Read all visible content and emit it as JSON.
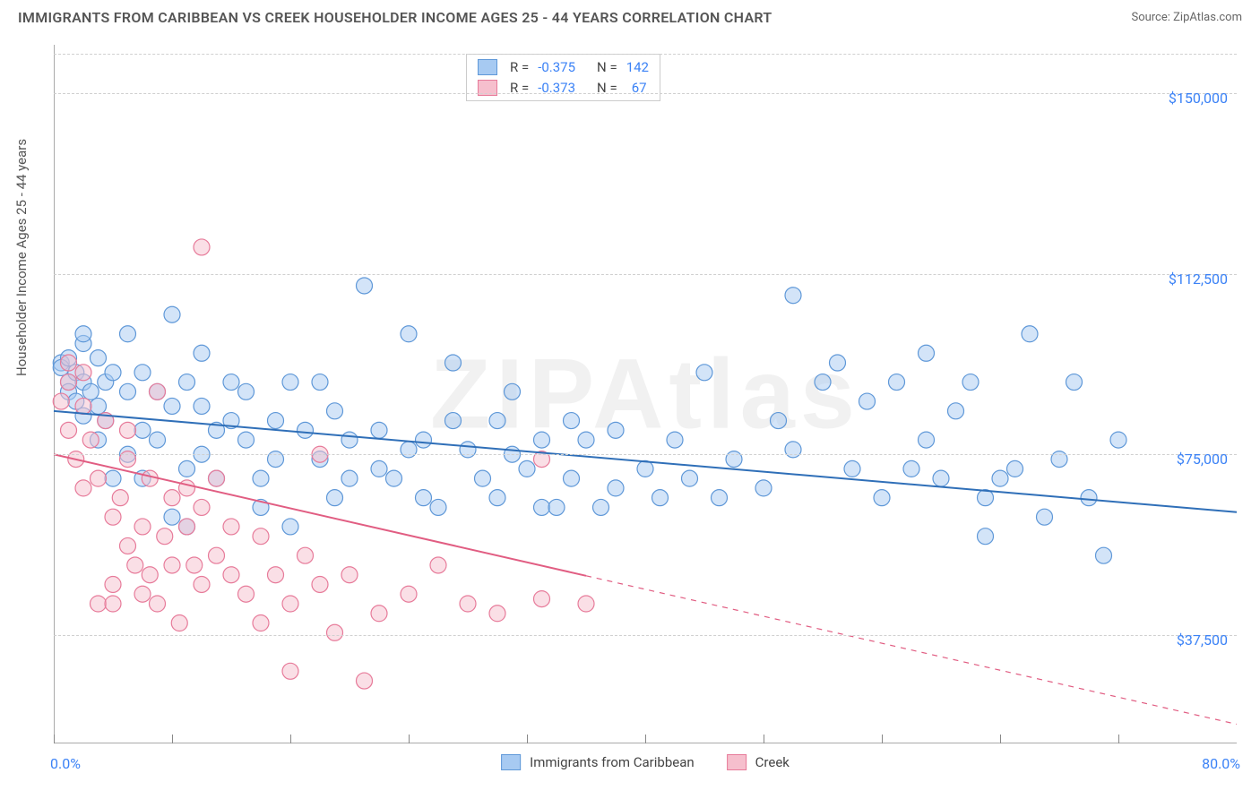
{
  "title": "IMMIGRANTS FROM CARIBBEAN VS CREEK HOUSEHOLDER INCOME AGES 25 - 44 YEARS CORRELATION CHART",
  "source": "Source: ZipAtlas.com",
  "watermark": "ZIPAtlas",
  "chart": {
    "type": "scatter",
    "y_axis_label": "Householder Income Ages 25 - 44 years",
    "xlim": [
      0,
      80
    ],
    "ylim": [
      15000,
      160000
    ],
    "x_min_label": "0.0%",
    "x_max_label": "80.0%",
    "y_ticks": [
      37500,
      75000,
      112500,
      150000
    ],
    "y_tick_labels": [
      "$37,500",
      "$75,000",
      "$112,500",
      "$150,000"
    ],
    "x_tick_positions": [
      0,
      8,
      16,
      24,
      32,
      40,
      48,
      56,
      64,
      72
    ],
    "grid_color": "#d0d0d0",
    "background_color": "#ffffff",
    "marker_radius": 9,
    "marker_opacity": 0.5,
    "line_width": 2,
    "series": [
      {
        "name": "Immigrants from Caribbean",
        "color_fill": "#a7caf2",
        "color_stroke": "#5f98d8",
        "line_color": "#2f6fb8",
        "R": "-0.375",
        "N": "142",
        "trend": {
          "x1": 0,
          "y1": 84000,
          "x2": 80,
          "y2": 63000,
          "solid_until_x": 80
        },
        "points": [
          [
            0.5,
            94000
          ],
          [
            0.5,
            93000
          ],
          [
            1,
            95000
          ],
          [
            1,
            90000
          ],
          [
            1,
            88000
          ],
          [
            1.5,
            86000
          ],
          [
            1.5,
            92000
          ],
          [
            2,
            98000
          ],
          [
            2,
            83000
          ],
          [
            2,
            100000
          ],
          [
            2,
            90000
          ],
          [
            2.5,
            88000
          ],
          [
            3,
            95000
          ],
          [
            3,
            85000
          ],
          [
            3,
            78000
          ],
          [
            3.5,
            90000
          ],
          [
            3.5,
            82000
          ],
          [
            4,
            92000
          ],
          [
            4,
            70000
          ],
          [
            5,
            75000
          ],
          [
            5,
            88000
          ],
          [
            5,
            100000
          ],
          [
            6,
            80000
          ],
          [
            6,
            70000
          ],
          [
            6,
            92000
          ],
          [
            7,
            78000
          ],
          [
            7,
            88000
          ],
          [
            8,
            85000
          ],
          [
            8,
            104000
          ],
          [
            8,
            62000
          ],
          [
            9,
            90000
          ],
          [
            9,
            60000
          ],
          [
            9,
            72000
          ],
          [
            10,
            75000
          ],
          [
            10,
            85000
          ],
          [
            10,
            96000
          ],
          [
            11,
            80000
          ],
          [
            11,
            70000
          ],
          [
            12,
            90000
          ],
          [
            12,
            82000
          ],
          [
            13,
            78000
          ],
          [
            13,
            88000
          ],
          [
            14,
            70000
          ],
          [
            14,
            64000
          ],
          [
            15,
            82000
          ],
          [
            15,
            74000
          ],
          [
            16,
            90000
          ],
          [
            16,
            60000
          ],
          [
            17,
            80000
          ],
          [
            18,
            74000
          ],
          [
            18,
            90000
          ],
          [
            19,
            84000
          ],
          [
            19,
            66000
          ],
          [
            20,
            78000
          ],
          [
            20,
            70000
          ],
          [
            21,
            110000
          ],
          [
            22,
            80000
          ],
          [
            22,
            72000
          ],
          [
            23,
            70000
          ],
          [
            24,
            76000
          ],
          [
            24,
            100000
          ],
          [
            25,
            66000
          ],
          [
            25,
            78000
          ],
          [
            26,
            64000
          ],
          [
            27,
            82000
          ],
          [
            27,
            94000
          ],
          [
            28,
            76000
          ],
          [
            29,
            70000
          ],
          [
            30,
            82000
          ],
          [
            30,
            66000
          ],
          [
            31,
            75000
          ],
          [
            31,
            88000
          ],
          [
            32,
            72000
          ],
          [
            33,
            64000
          ],
          [
            33,
            78000
          ],
          [
            34,
            64000
          ],
          [
            35,
            70000
          ],
          [
            35,
            82000
          ],
          [
            36,
            78000
          ],
          [
            37,
            64000
          ],
          [
            38,
            68000
          ],
          [
            38,
            80000
          ],
          [
            40,
            72000
          ],
          [
            41,
            66000
          ],
          [
            42,
            78000
          ],
          [
            43,
            70000
          ],
          [
            44,
            92000
          ],
          [
            45,
            66000
          ],
          [
            46,
            74000
          ],
          [
            48,
            68000
          ],
          [
            49,
            82000
          ],
          [
            50,
            76000
          ],
          [
            50,
            108000
          ],
          [
            52,
            90000
          ],
          [
            53,
            94000
          ],
          [
            54,
            72000
          ],
          [
            55,
            86000
          ],
          [
            56,
            66000
          ],
          [
            57,
            90000
          ],
          [
            58,
            72000
          ],
          [
            59,
            78000
          ],
          [
            59,
            96000
          ],
          [
            60,
            70000
          ],
          [
            61,
            84000
          ],
          [
            62,
            90000
          ],
          [
            63,
            66000
          ],
          [
            63,
            58000
          ],
          [
            64,
            70000
          ],
          [
            65,
            72000
          ],
          [
            66,
            100000
          ],
          [
            67,
            62000
          ],
          [
            68,
            74000
          ],
          [
            69,
            90000
          ],
          [
            70,
            66000
          ],
          [
            71,
            54000
          ],
          [
            72,
            78000
          ]
        ]
      },
      {
        "name": "Creek",
        "color_fill": "#f6bfcd",
        "color_stroke": "#e77b9a",
        "line_color": "#e15d82",
        "R": "-0.373",
        "N": "67",
        "trend": {
          "x1": 0,
          "y1": 75000,
          "x2": 80,
          "y2": 19000,
          "solid_until_x": 36
        },
        "points": [
          [
            0.5,
            86000
          ],
          [
            1,
            94000
          ],
          [
            1,
            90000
          ],
          [
            1,
            80000
          ],
          [
            1.5,
            74000
          ],
          [
            2,
            85000
          ],
          [
            2,
            68000
          ],
          [
            2,
            92000
          ],
          [
            2.5,
            78000
          ],
          [
            3,
            70000
          ],
          [
            3,
            44000
          ],
          [
            3.5,
            82000
          ],
          [
            4,
            62000
          ],
          [
            4,
            48000
          ],
          [
            4,
            44000
          ],
          [
            4.5,
            66000
          ],
          [
            5,
            74000
          ],
          [
            5,
            56000
          ],
          [
            5,
            80000
          ],
          [
            5.5,
            52000
          ],
          [
            6,
            60000
          ],
          [
            6,
            46000
          ],
          [
            6.5,
            70000
          ],
          [
            6.5,
            50000
          ],
          [
            7,
            44000
          ],
          [
            7,
            88000
          ],
          [
            7.5,
            58000
          ],
          [
            8,
            66000
          ],
          [
            8,
            52000
          ],
          [
            8.5,
            40000
          ],
          [
            9,
            68000
          ],
          [
            9,
            60000
          ],
          [
            9.5,
            52000
          ],
          [
            10,
            64000
          ],
          [
            10,
            48000
          ],
          [
            10,
            118000
          ],
          [
            11,
            54000
          ],
          [
            11,
            70000
          ],
          [
            12,
            50000
          ],
          [
            12,
            60000
          ],
          [
            13,
            46000
          ],
          [
            14,
            58000
          ],
          [
            14,
            40000
          ],
          [
            15,
            50000
          ],
          [
            16,
            44000
          ],
          [
            16,
            30000
          ],
          [
            17,
            54000
          ],
          [
            18,
            48000
          ],
          [
            18,
            75000
          ],
          [
            19,
            38000
          ],
          [
            20,
            50000
          ],
          [
            21,
            28000
          ],
          [
            22,
            42000
          ],
          [
            24,
            46000
          ],
          [
            26,
            52000
          ],
          [
            28,
            44000
          ],
          [
            30,
            42000
          ],
          [
            33,
            45000
          ],
          [
            33,
            74000
          ],
          [
            36,
            44000
          ]
        ]
      }
    ]
  }
}
